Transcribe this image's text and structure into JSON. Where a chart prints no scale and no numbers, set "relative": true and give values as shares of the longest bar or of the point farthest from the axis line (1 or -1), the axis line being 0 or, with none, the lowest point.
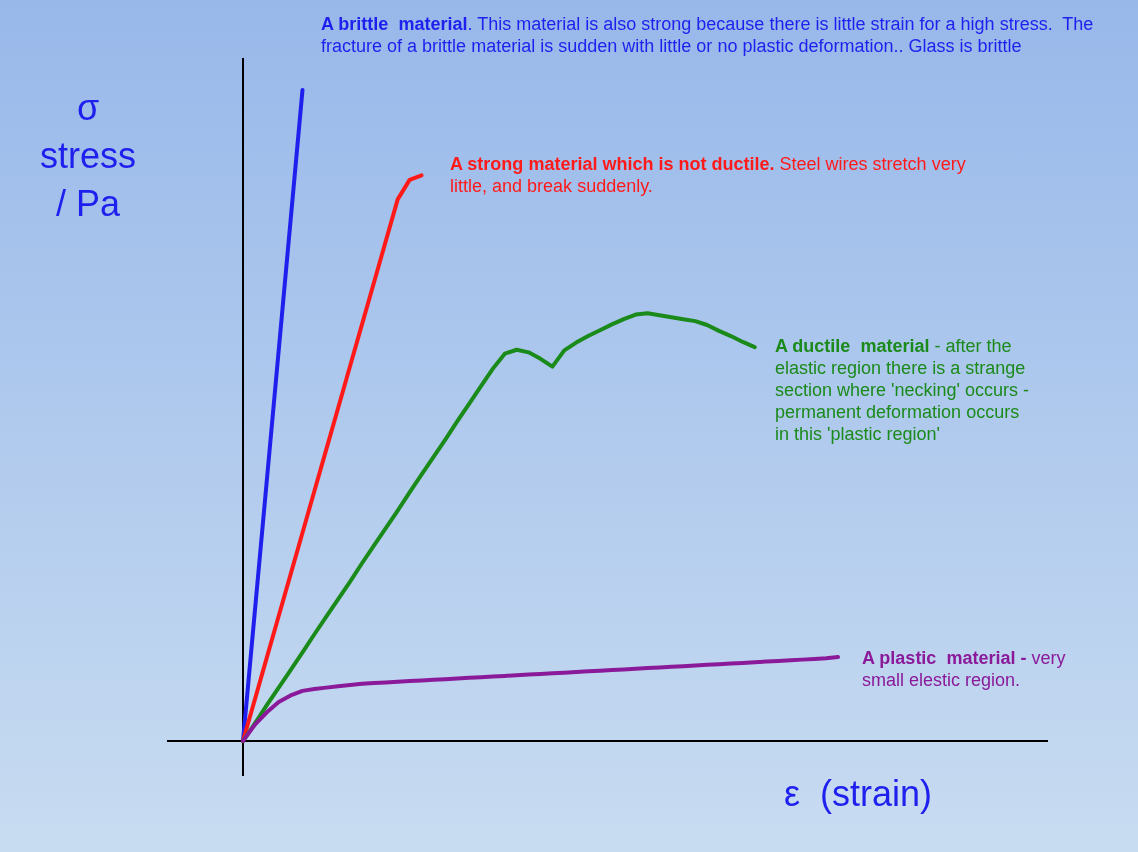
{
  "chart_data": {
    "type": "line",
    "relative": true,
    "xlabel": "ε  (strain)",
    "ylabel": "σ stress / Pa",
    "marker": "none",
    "line_style": "solid",
    "grid": false,
    "legend": false,
    "categories": [
      null,
      null,
      null,
      null,
      null,
      null,
      null,
      null,
      null,
      null,
      null,
      null,
      null,
      null,
      null,
      null,
      null,
      null,
      null,
      null,
      null,
      null,
      null,
      null,
      null,
      null,
      null,
      null,
      null,
      null,
      null,
      null,
      null,
      null,
      null,
      null,
      null,
      null,
      null,
      null,
      null,
      null,
      null,
      null,
      null,
      null,
      null,
      null,
      null,
      null,
      null
    ],
    "series": [
      {
        "name": "A brittle  material",
        "color": "#1f1fee",
        "values": [
          0,
          0.2,
          0.4,
          0.6,
          0.8,
          1,
          null,
          null,
          null,
          null,
          null,
          null,
          null,
          null,
          null,
          null,
          null,
          null,
          null,
          null,
          null,
          null,
          null,
          null,
          null,
          null,
          null,
          null,
          null,
          null,
          null,
          null,
          null,
          null,
          null,
          null,
          null,
          null,
          null,
          null,
          null,
          null,
          null,
          null,
          null,
          null,
          null,
          null,
          null,
          null,
          null
        ]
      },
      {
        "name": "A strong material which is not ductile.",
        "color": "#ff1a1a",
        "values": [
          0,
          0.064,
          0.128,
          0.192,
          0.256,
          0.32,
          0.384,
          0.448,
          0.512,
          0.576,
          0.64,
          0.704,
          0.768,
          0.832,
          0.862,
          0.869,
          null,
          null,
          null,
          null,
          null,
          null,
          null,
          null,
          null,
          null,
          null,
          null,
          null,
          null,
          null,
          null,
          null,
          null,
          null,
          null,
          null,
          null,
          null,
          null,
          null,
          null,
          null,
          null,
          null,
          null,
          null,
          null,
          null,
          null,
          null
        ]
      },
      {
        "name": "A ductile  material",
        "color": "#1a8a1a",
        "values": [
          0,
          0.027,
          0.055,
          0.082,
          0.109,
          0.136,
          0.164,
          0.191,
          0.218,
          0.245,
          0.273,
          0.3,
          0.327,
          0.354,
          0.382,
          0.409,
          0.436,
          0.463,
          0.491,
          0.518,
          0.545,
          0.572,
          0.595,
          0.601,
          0.597,
          0.587,
          0.575,
          0.6,
          0.612,
          0.622,
          0.631,
          0.64,
          0.648,
          0.655,
          0.657,
          0.654,
          0.651,
          0.648,
          0.645,
          0.639,
          0.63,
          0.622,
          0.613,
          0.605,
          null,
          null,
          null,
          null,
          null,
          null,
          null
        ]
      },
      {
        "name": "A plastic  material -",
        "color": "#8a1a9a",
        "values": [
          0,
          0.025,
          0.044,
          0.06,
          0.07,
          0.077,
          0.08,
          0.082,
          0.084,
          0.086,
          0.088,
          0.089,
          0.09,
          0.091,
          0.092,
          0.093,
          0.094,
          0.095,
          0.096,
          0.097,
          0.098,
          0.099,
          0.1,
          0.101,
          0.102,
          0.103,
          0.104,
          0.105,
          0.106,
          0.107,
          0.108,
          0.109,
          0.11,
          0.111,
          0.112,
          0.113,
          0.114,
          0.115,
          0.116,
          0.117,
          0.118,
          0.119,
          0.12,
          0.121,
          0.122,
          0.123,
          0.124,
          0.125,
          0.126,
          0.127,
          0.129
        ]
      }
    ],
    "annotations": [
      ". This material is also strong because there is little strain for a high stress.  The fracture of a brittle material is sudden with little or no plastic deformation.. Glass is brittle",
      "Steel wires stretch very little, and break suddenly.",
      "- after the elastic region there is a strange section where 'necking' occurs - permanent deformation occurs in this 'plastic region'",
      "very small elestic region."
    ]
  }
}
